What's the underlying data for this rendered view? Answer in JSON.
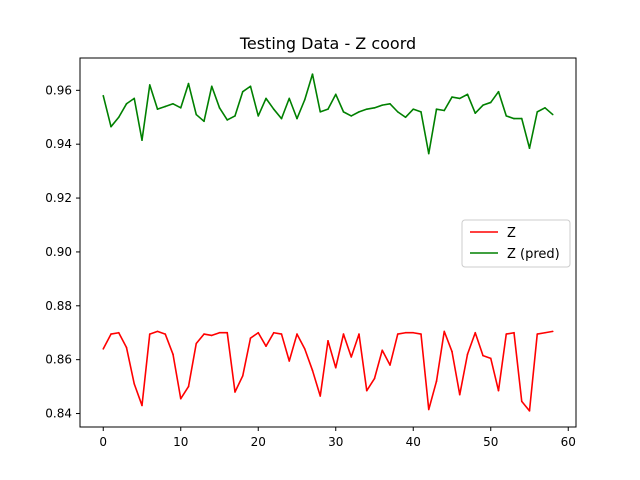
{
  "chart_data": {
    "type": "line",
    "title": "Testing Data - Z coord",
    "xlabel": "",
    "ylabel": "",
    "xlim": [
      -3.0,
      61.0
    ],
    "ylim": [
      0.835,
      0.972
    ],
    "xticks": [
      0,
      10,
      20,
      30,
      40,
      50,
      60
    ],
    "yticks": [
      0.84,
      0.86,
      0.88,
      0.9,
      0.92,
      0.94,
      0.96
    ],
    "ytick_labels": [
      "0.84",
      "0.86",
      "0.88",
      "0.90",
      "0.92",
      "0.94",
      "0.96"
    ],
    "grid": false,
    "legend_position": "center-right",
    "series": [
      {
        "name": "Z",
        "color": "#ff0000",
        "x": [
          0,
          1,
          2,
          3,
          4,
          5,
          6,
          7,
          8,
          9,
          10,
          11,
          12,
          13,
          14,
          15,
          16,
          17,
          18,
          19,
          20,
          21,
          22,
          23,
          24,
          25,
          26,
          27,
          28,
          29,
          30,
          31,
          32,
          33,
          34,
          35,
          36,
          37,
          38,
          39,
          40,
          41,
          42,
          43,
          44,
          45,
          46,
          47,
          48,
          49,
          50,
          51,
          52,
          53,
          54,
          55,
          56,
          57,
          58
        ],
        "values": [
          0.864,
          0.8695,
          0.87,
          0.8645,
          0.851,
          0.843,
          0.8695,
          0.8705,
          0.8695,
          0.862,
          0.8455,
          0.85,
          0.866,
          0.8695,
          0.869,
          0.87,
          0.87,
          0.848,
          0.854,
          0.868,
          0.87,
          0.865,
          0.87,
          0.8695,
          0.8595,
          0.8695,
          0.864,
          0.856,
          0.8465,
          0.867,
          0.857,
          0.8695,
          0.861,
          0.8695,
          0.8485,
          0.853,
          0.8635,
          0.858,
          0.8695,
          0.87,
          0.87,
          0.8695,
          0.8415,
          0.852,
          0.8705,
          0.863,
          0.847,
          0.862,
          0.87,
          0.8615,
          0.8605,
          0.8485,
          0.8695,
          0.87,
          0.8445,
          0.841,
          0.8695,
          0.87,
          0.8705
        ]
      },
      {
        "name": "Z (pred)",
        "color": "#008000",
        "x": [
          0,
          1,
          2,
          3,
          4,
          5,
          6,
          7,
          8,
          9,
          10,
          11,
          12,
          13,
          14,
          15,
          16,
          17,
          18,
          19,
          20,
          21,
          22,
          23,
          24,
          25,
          26,
          27,
          28,
          29,
          30,
          31,
          32,
          33,
          34,
          35,
          36,
          37,
          38,
          39,
          40,
          41,
          42,
          43,
          44,
          45,
          46,
          47,
          48,
          49,
          50,
          51,
          52,
          53,
          54,
          55,
          56,
          57,
          58
        ],
        "values": [
          0.958,
          0.9465,
          0.95,
          0.955,
          0.957,
          0.9415,
          0.962,
          0.953,
          0.954,
          0.955,
          0.9535,
          0.9625,
          0.951,
          0.9485,
          0.9615,
          0.9535,
          0.949,
          0.9505,
          0.9595,
          0.9615,
          0.9505,
          0.957,
          0.953,
          0.9495,
          0.957,
          0.9495,
          0.9565,
          0.966,
          0.952,
          0.953,
          0.9585,
          0.952,
          0.9505,
          0.952,
          0.953,
          0.9535,
          0.9545,
          0.955,
          0.952,
          0.95,
          0.953,
          0.952,
          0.9365,
          0.953,
          0.9525,
          0.9575,
          0.957,
          0.9585,
          0.9515,
          0.9545,
          0.9555,
          0.9595,
          0.9505,
          0.9495,
          0.9495,
          0.9385,
          0.952,
          0.9535,
          0.951
        ]
      }
    ]
  }
}
